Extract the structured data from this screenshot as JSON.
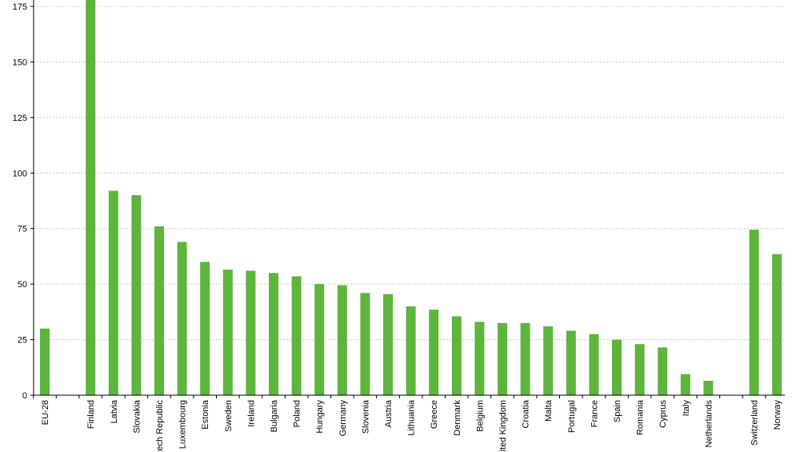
{
  "chart_data": {
    "type": "bar",
    "title": "",
    "xlabel": "",
    "ylabel": "",
    "ylim": [
      0,
      175
    ],
    "yticks": [
      0,
      25,
      50,
      75,
      100,
      125,
      150,
      175
    ],
    "grid": true,
    "legend": "none",
    "bar_color": "#5db53c",
    "categories": [
      "EU-28",
      "",
      "Finland",
      "Latvia",
      "Slovakia",
      "Czech Republic",
      "Luxembourg",
      "Estonia",
      "Sweden",
      "Ireland",
      "Bulgaria",
      "Poland",
      "Hungary",
      "Germany",
      "Slovenia",
      "Austria",
      "Lithuania",
      "Greece",
      "Denmark",
      "Belgium",
      "United Kingdom",
      "Croatia",
      "Malta",
      "Portugal",
      "France",
      "Spain",
      "Romania",
      "Cyprus",
      "Italy",
      "Netherlands",
      "",
      "Switzerland",
      "Norway"
    ],
    "values": [
      30,
      null,
      180,
      92,
      90,
      76,
      69,
      60,
      56.5,
      56,
      55,
      53.5,
      50,
      49.5,
      46,
      45.5,
      40,
      38.5,
      35.5,
      33,
      32.5,
      32.5,
      31,
      29,
      27.5,
      25,
      23,
      21.5,
      9.5,
      6.5,
      null,
      74.5,
      63.5
    ]
  }
}
